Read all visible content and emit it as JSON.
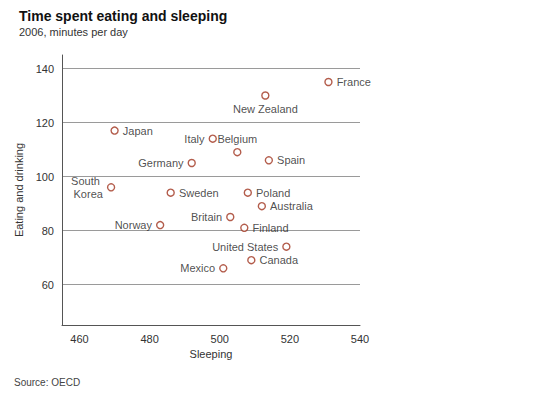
{
  "chart_data": {
    "type": "scatter",
    "title": "Time spent eating and sleeping",
    "subtitle": "2006, minutes per day",
    "x_label": "Sleeping",
    "y_label": "Eating and drinking",
    "source": "Source: OECD",
    "labels": [
      "France",
      "New Zealand",
      "Japan",
      "Italy",
      "Belgium",
      "Germany",
      "Spain",
      "South Korea",
      "Sweden",
      "Poland",
      "Australia",
      "Britain",
      "Norway",
      "Finland",
      "United States",
      "Mexico",
      "Canada"
    ],
    "x": [
      531,
      513,
      470,
      498,
      505,
      492,
      514,
      469,
      486,
      508,
      512,
      503,
      483,
      507,
      519,
      501,
      509
    ],
    "values": [
      135,
      130,
      117,
      114,
      109,
      105,
      106,
      96,
      94,
      94,
      89,
      85,
      82,
      81,
      74,
      66,
      69
    ],
    "color": "#a0351f",
    "marker": "hollow circle",
    "xlim": [
      455,
      540
    ],
    "xticks": [
      460,
      480,
      500,
      520,
      540
    ],
    "ylim": [
      45,
      145
    ],
    "yticks": [
      60,
      80,
      100,
      120,
      140
    ],
    "grid": "y"
  }
}
